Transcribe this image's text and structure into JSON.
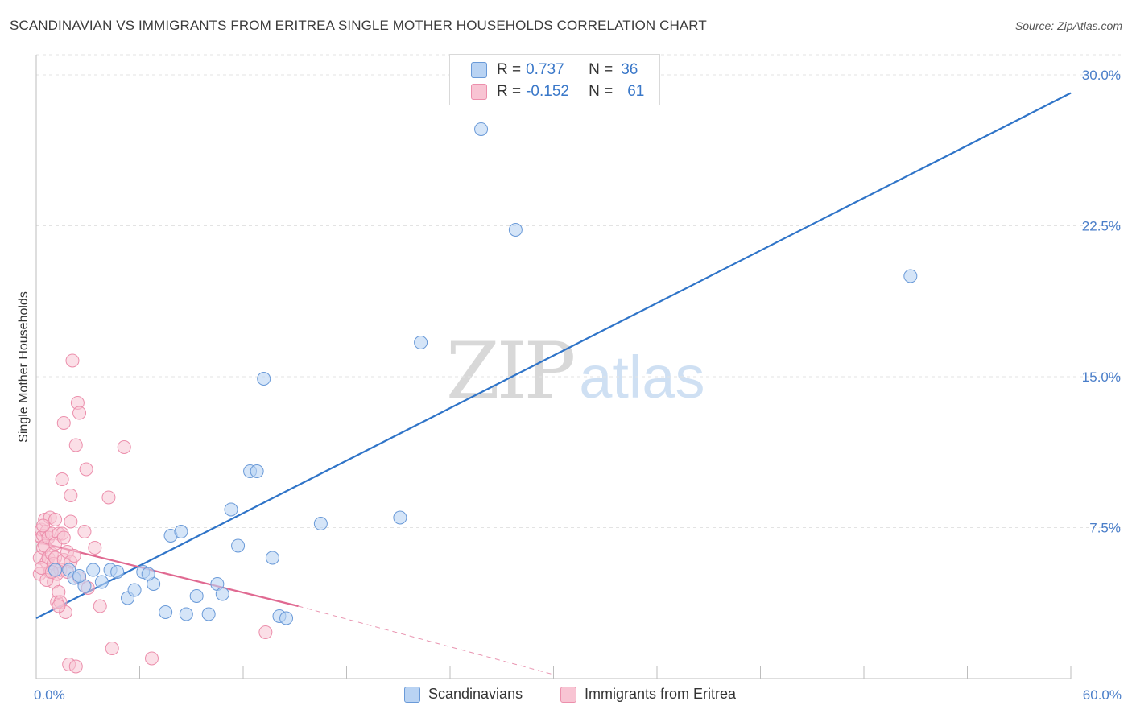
{
  "title": "SCANDINAVIAN VS IMMIGRANTS FROM ERITREA SINGLE MOTHER HOUSEHOLDS CORRELATION CHART",
  "source": "Source: ZipAtlas.com",
  "watermark": {
    "zip": "ZIP",
    "atlas": "atlas"
  },
  "legend": {
    "r_label": "R =",
    "n_label": "N =",
    "series1": {
      "r": "0.737",
      "n": "36"
    },
    "series2": {
      "r": "-0.152",
      "n": "61"
    }
  },
  "bottom_legend": {
    "series1": "Scandinavians",
    "series2": "Immigrants from Eritrea"
  },
  "colors": {
    "blue_fill": "#b9d3f3",
    "blue_stroke": "#6a9ad8",
    "blue_line": "#2f74c8",
    "pink_fill": "#f8c4d3",
    "pink_stroke": "#ec8fac",
    "pink_line": "#e06991",
    "grid": "#e3e3e3",
    "tick_text": "#4a7ec9"
  },
  "chart_data": {
    "type": "scatter",
    "title": "SCANDINAVIAN VS IMMIGRANTS FROM ERITREA SINGLE MOTHER HOUSEHOLDS CORRELATION CHART",
    "xlabel": "",
    "ylabel": "Single Mother Households",
    "xlim": [
      0,
      60
    ],
    "ylim": [
      0,
      31
    ],
    "x_tick_labels": [
      {
        "value": 0,
        "label": "0.0%"
      },
      {
        "value": 60,
        "label": "60.0%"
      }
    ],
    "y_ticks": [
      {
        "value": 7.5,
        "label": "7.5%"
      },
      {
        "value": 15,
        "label": "15.0%"
      },
      {
        "value": 22.5,
        "label": "22.5%"
      },
      {
        "value": 30,
        "label": "30.0%"
      }
    ],
    "x_minor_ticks": [
      6,
      12,
      18,
      24,
      30,
      36,
      42,
      48,
      54,
      60
    ],
    "series": [
      {
        "name": "Scandinavians",
        "R": 0.737,
        "N": 36,
        "points": [
          [
            1.1,
            5.4
          ],
          [
            1.9,
            5.4
          ],
          [
            2.2,
            5.0
          ],
          [
            2.8,
            4.6
          ],
          [
            3.3,
            5.4
          ],
          [
            3.8,
            4.8
          ],
          [
            4.3,
            5.4
          ],
          [
            4.7,
            5.3
          ],
          [
            5.3,
            4.0
          ],
          [
            5.7,
            4.4
          ],
          [
            6.2,
            5.3
          ],
          [
            6.8,
            4.7
          ],
          [
            7.5,
            3.3
          ],
          [
            7.8,
            7.1
          ],
          [
            8.4,
            7.3
          ],
          [
            8.7,
            3.2
          ],
          [
            9.3,
            4.1
          ],
          [
            10.0,
            3.2
          ],
          [
            10.5,
            4.7
          ],
          [
            10.8,
            4.2
          ],
          [
            11.3,
            8.4
          ],
          [
            11.7,
            6.6
          ],
          [
            12.4,
            10.3
          ],
          [
            12.8,
            10.3
          ],
          [
            13.2,
            14.9
          ],
          [
            13.7,
            6.0
          ],
          [
            14.1,
            3.1
          ],
          [
            14.5,
            3.0
          ],
          [
            16.5,
            7.7
          ],
          [
            21.1,
            8.0
          ],
          [
            22.3,
            16.7
          ],
          [
            25.8,
            27.3
          ],
          [
            27.8,
            22.3
          ],
          [
            50.7,
            20.0
          ],
          [
            2.5,
            5.1
          ],
          [
            6.5,
            5.2
          ]
        ],
        "trend": {
          "x1": 0,
          "y1": 3.0,
          "x2": 60,
          "y2": 29.1
        }
      },
      {
        "name": "Immigrants from Eritrea",
        "R": -0.152,
        "N": 61,
        "points": [
          [
            0.2,
            6.0
          ],
          [
            0.2,
            5.2
          ],
          [
            0.3,
            7.0
          ],
          [
            0.3,
            7.4
          ],
          [
            0.4,
            6.5
          ],
          [
            0.4,
            7.1
          ],
          [
            0.5,
            7.9
          ],
          [
            0.5,
            6.6
          ],
          [
            0.6,
            7.3
          ],
          [
            0.6,
            5.8
          ],
          [
            0.7,
            7.0
          ],
          [
            0.7,
            6.0
          ],
          [
            0.8,
            8.0
          ],
          [
            0.8,
            5.3
          ],
          [
            0.9,
            6.2
          ],
          [
            0.9,
            7.2
          ],
          [
            1.0,
            5.7
          ],
          [
            1.0,
            4.8
          ],
          [
            1.1,
            7.9
          ],
          [
            1.1,
            6.0
          ],
          [
            1.2,
            3.8
          ],
          [
            1.2,
            5.2
          ],
          [
            1.3,
            4.3
          ],
          [
            1.3,
            7.2
          ],
          [
            1.4,
            5.4
          ],
          [
            1.4,
            3.8
          ],
          [
            1.5,
            7.2
          ],
          [
            1.5,
            9.9
          ],
          [
            1.6,
            12.7
          ],
          [
            1.6,
            5.9
          ],
          [
            1.7,
            3.3
          ],
          [
            1.8,
            6.3
          ],
          [
            1.9,
            0.7
          ],
          [
            2.0,
            7.8
          ],
          [
            2.0,
            9.1
          ],
          [
            2.0,
            5.8
          ],
          [
            2.1,
            15.8
          ],
          [
            2.3,
            0.6
          ],
          [
            2.3,
            11.6
          ],
          [
            2.4,
            13.7
          ],
          [
            2.5,
            13.2
          ],
          [
            2.5,
            5.0
          ],
          [
            2.8,
            7.3
          ],
          [
            2.9,
            10.4
          ],
          [
            3.0,
            4.5
          ],
          [
            3.4,
            6.5
          ],
          [
            3.7,
            3.6
          ],
          [
            4.2,
            9.0
          ],
          [
            4.4,
            1.5
          ],
          [
            5.1,
            11.5
          ],
          [
            6.7,
            1.0
          ],
          [
            13.3,
            2.3
          ],
          [
            0.3,
            5.5
          ],
          [
            0.6,
            4.9
          ],
          [
            1.1,
            6.7
          ],
          [
            1.8,
            5.3
          ],
          [
            1.3,
            3.6
          ],
          [
            0.9,
            5.3
          ],
          [
            2.2,
            6.1
          ],
          [
            0.4,
            7.6
          ],
          [
            1.6,
            7.0
          ]
        ],
        "trend": {
          "x1": 0,
          "y1": 6.8,
          "x2": 15.2,
          "y2": 3.6
        },
        "trend_dashed": {
          "x1": 15.2,
          "y1": 3.6,
          "x2": 30,
          "y2": 0.2
        }
      }
    ]
  }
}
